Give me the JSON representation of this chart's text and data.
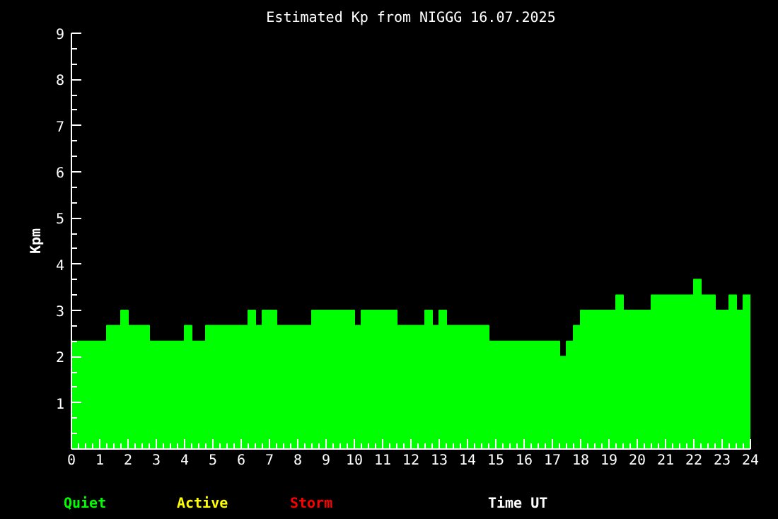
{
  "chart_data": {
    "type": "area",
    "title": "Estimated Kp from NIGGG 16.07.2025",
    "xlabel": "Time UT",
    "ylabel": "Kpm",
    "x": [
      0.125,
      0.375,
      0.625,
      0.875,
      1.125,
      1.375,
      1.625,
      1.875,
      2.125,
      2.375,
      2.625,
      2.875,
      3.125,
      3.375,
      3.625,
      3.875,
      4.125,
      4.375,
      4.625,
      4.875,
      5.125,
      5.375,
      5.625,
      5.875,
      6.125,
      6.375,
      6.625,
      6.875,
      7.125,
      7.375,
      7.625,
      7.875,
      8.125,
      8.375,
      8.625,
      8.875,
      9.125,
      9.375,
      9.625,
      9.875,
      10.125,
      10.375,
      10.625,
      10.875,
      11.125,
      11.375,
      11.625,
      11.875,
      12.125,
      12.375,
      12.625,
      12.875,
      13.125,
      13.375,
      13.625,
      13.875,
      14.125,
      14.375,
      14.625,
      14.875,
      15.125,
      15.375,
      15.625,
      15.875,
      16.125,
      16.375,
      16.625,
      16.875,
      17.125,
      17.375,
      17.625,
      17.875,
      18.125,
      18.375,
      18.625,
      18.875,
      19.125,
      19.375,
      19.625,
      19.875,
      20.125,
      20.375,
      20.625,
      20.875,
      21.125,
      21.375,
      21.625,
      21.875,
      22.125,
      22.375,
      22.625,
      22.875,
      23.125,
      23.375,
      23.625,
      23.875
    ],
    "series": [
      {
        "name": "Quiet",
        "color": "#00ff00",
        "values": [
          2.33,
          2.33,
          2.33,
          2.33,
          2.33,
          2.67,
          2.67,
          3,
          2.67,
          2.67,
          2.67,
          2.33,
          2.33,
          2.33,
          2.33,
          2.33,
          2.67,
          2.33,
          2.33,
          2.67,
          2.67,
          2.67,
          2.67,
          2.67,
          2.67,
          3,
          2.67,
          3,
          3,
          2.67,
          2.67,
          2.67,
          2.67,
          2.67,
          3,
          3,
          3,
          3,
          3,
          3,
          2.67,
          3,
          3,
          3,
          3,
          3,
          2.67,
          2.67,
          2.67,
          2.67,
          3,
          2.67,
          3,
          2.67,
          2.67,
          2.67,
          2.67,
          2.67,
          2.67,
          2.33,
          2.33,
          2.33,
          2.33,
          2.33,
          2.33,
          2.33,
          2.33,
          2.33,
          2.33,
          2,
          2.33,
          2.67,
          3,
          3,
          3,
          3,
          3,
          3.33,
          3,
          3,
          3,
          3,
          3.33,
          3.33,
          3.33,
          3.33,
          3.33,
          3.33,
          3.67,
          3.33,
          3.33,
          3,
          3,
          3.33,
          3,
          3.33
        ]
      },
      {
        "name": "Active",
        "color": "#ffff00",
        "values": [
          null,
          null,
          null,
          null,
          null,
          null,
          null,
          null,
          null,
          null,
          null,
          null,
          null,
          null,
          null,
          null,
          null,
          null,
          null,
          null,
          null,
          null,
          null,
          null,
          null,
          null,
          null,
          null,
          null,
          null,
          null,
          null,
          null,
          null,
          null,
          null,
          null,
          null,
          null,
          null,
          null,
          null,
          null,
          null,
          null,
          null,
          null,
          null,
          null,
          null,
          null,
          null,
          null,
          null,
          null,
          null,
          null,
          null,
          null,
          null,
          null,
          null,
          null,
          null,
          null,
          null,
          null,
          null,
          null,
          null,
          null,
          null,
          null,
          null,
          null,
          null,
          null,
          null,
          null,
          null,
          null,
          null,
          null,
          null,
          null,
          null,
          null,
          null,
          null,
          null,
          null,
          null,
          null,
          null,
          null,
          null
        ]
      },
      {
        "name": "Storm",
        "color": "#ff0000",
        "values": [
          null,
          null,
          null,
          null,
          null,
          null,
          null,
          null,
          null,
          null,
          null,
          null,
          null,
          null,
          null,
          null,
          null,
          null,
          null,
          null,
          null,
          null,
          null,
          null,
          null,
          null,
          null,
          null,
          null,
          null,
          null,
          null,
          null,
          null,
          null,
          null,
          null,
          null,
          null,
          null,
          null,
          null,
          null,
          null,
          null,
          null,
          null,
          null,
          null,
          null,
          null,
          null,
          null,
          null,
          null,
          null,
          null,
          null,
          null,
          null,
          null,
          null,
          null,
          null,
          null,
          null,
          null,
          null,
          null,
          null,
          null,
          null,
          null,
          null,
          null,
          null,
          null,
          null,
          null,
          null,
          null,
          null,
          null,
          null,
          null,
          null,
          null,
          null,
          null,
          null,
          null,
          null,
          null,
          null,
          null,
          null
        ]
      }
    ],
    "xlim": [
      0,
      24
    ],
    "xticks": [
      0,
      1,
      2,
      3,
      4,
      5,
      6,
      7,
      8,
      9,
      10,
      11,
      12,
      13,
      14,
      15,
      16,
      17,
      18,
      19,
      20,
      21,
      22,
      23,
      24
    ],
    "ylim": [
      0,
      9
    ],
    "yticks": [
      1,
      2,
      3,
      4,
      5,
      6,
      7,
      8,
      9
    ],
    "grid": false
  }
}
